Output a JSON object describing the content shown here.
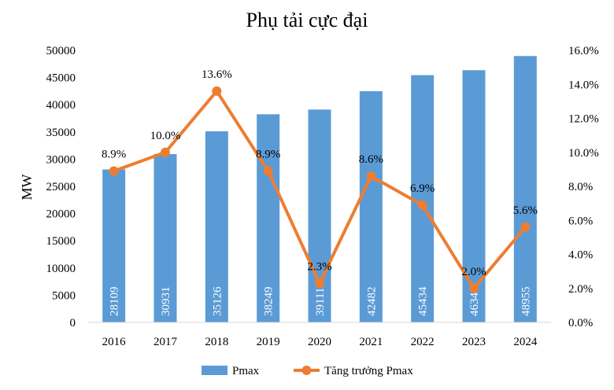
{
  "chart_data": {
    "type": "bar",
    "title": "Phụ tải cực đại",
    "xlabel": "",
    "ylabel": "MW",
    "y2label": "",
    "categories": [
      "2016",
      "2017",
      "2018",
      "2019",
      "2020",
      "2021",
      "2022",
      "2023",
      "2024"
    ],
    "series": [
      {
        "name": "Pmax",
        "type": "bar",
        "axis": "left",
        "color": "#5B9BD5",
        "values": [
          28109,
          30931,
          35126,
          38249,
          39111,
          42482,
          45434,
          46348,
          48955
        ],
        "labels": [
          "28109",
          "30931",
          "35126",
          "38249",
          "39111",
          "42482",
          "45434",
          "46348",
          "48955"
        ]
      },
      {
        "name": "Tăng trưởng Pmax",
        "type": "line",
        "axis": "right",
        "color": "#ED7D31",
        "values": [
          8.9,
          10.0,
          13.6,
          8.9,
          2.3,
          8.6,
          6.9,
          2.0,
          5.6
        ],
        "labels": [
          "8.9%",
          "10.0%",
          "13.6%",
          "8.9%",
          "2.3%",
          "8.6%",
          "6.9%",
          "2.0%",
          "5.6%"
        ]
      }
    ],
    "ylim": [
      0,
      50000
    ],
    "y2lim": [
      0,
      16
    ],
    "yticks": [
      "0",
      "5000",
      "10000",
      "15000",
      "20000",
      "25000",
      "30000",
      "35000",
      "40000",
      "45000",
      "50000"
    ],
    "y2ticks": [
      "0.0%",
      "2.0%",
      "4.0%",
      "6.0%",
      "8.0%",
      "10.0%",
      "12.0%",
      "14.0%",
      "16.0%"
    ],
    "grid": false,
    "legend": "bottom"
  }
}
